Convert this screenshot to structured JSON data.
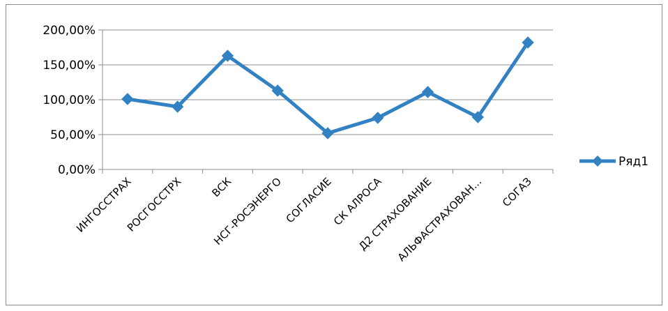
{
  "chart_data": {
    "type": "line",
    "title": "",
    "xlabel": "",
    "ylabel": "",
    "categories": [
      "ИНГОССТРАХ",
      "РОСГОССТРХ",
      "ВСК",
      "НСГ-РОСЭНЕРГО",
      "СОГЛАСИЕ",
      "СК АЛРОСА",
      "Д2 СТРАХОВАНИЕ",
      "АЛЬФАСТРАХОВАН...",
      "СОГАЗ"
    ],
    "series": [
      {
        "name": "Ряд1",
        "values": [
          101,
          90,
          163,
          113,
          52,
          74,
          111,
          75,
          182
        ],
        "color": "#3282c3"
      }
    ],
    "yticks": [
      "0,00%",
      "50,00%",
      "100,00%",
      "150,00%",
      "200,00%"
    ],
    "ylim": [
      0,
      200
    ],
    "grid": true,
    "legend_position": "right",
    "marker": "diamond"
  }
}
